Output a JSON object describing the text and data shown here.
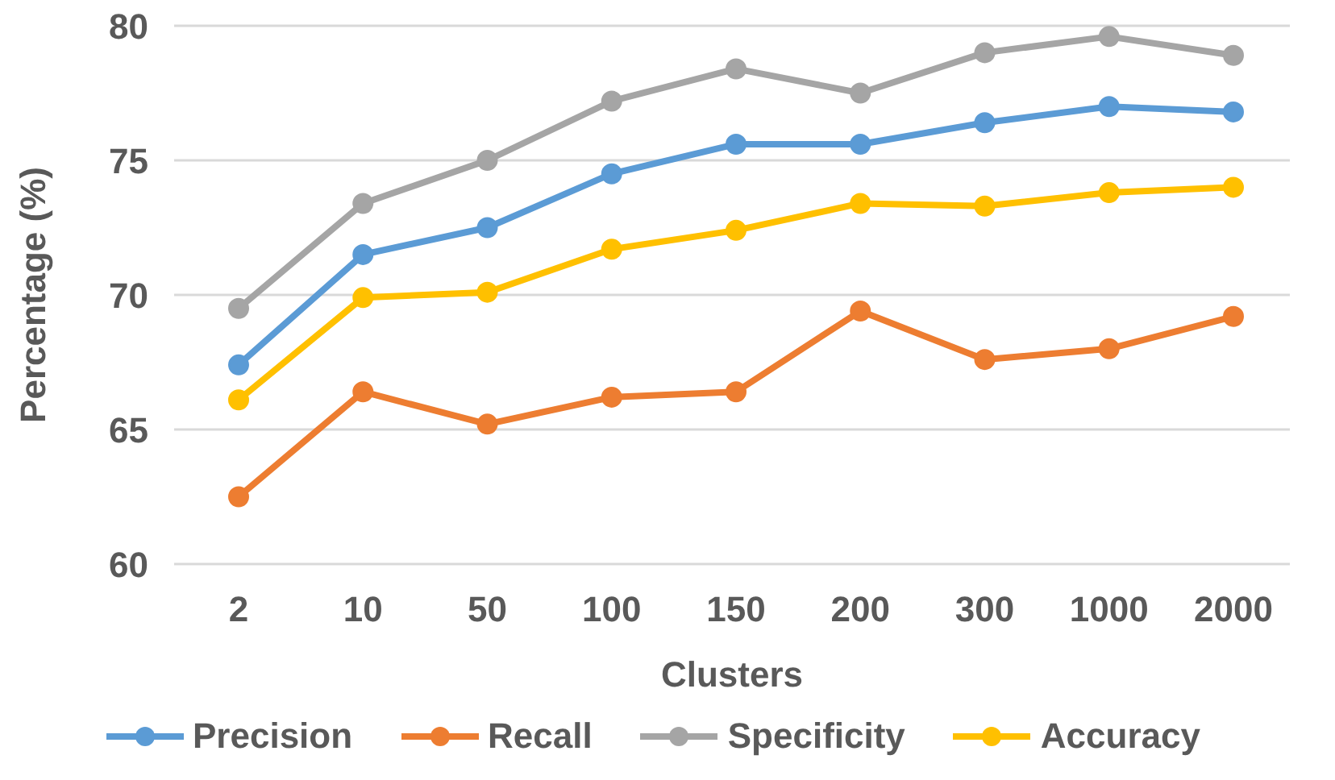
{
  "chart_data": {
    "type": "line",
    "xlabel": "Clusters",
    "ylabel": "Percentage (%)",
    "categories": [
      "2",
      "10",
      "50",
      "100",
      "150",
      "200",
      "300",
      "1000",
      "2000"
    ],
    "series": [
      {
        "name": "Precision",
        "color": "#5b9bd5",
        "values": [
          67.4,
          71.5,
          72.5,
          74.5,
          75.6,
          75.6,
          76.4,
          77.0,
          76.8
        ]
      },
      {
        "name": "Recall",
        "color": "#ed7d31",
        "values": [
          62.5,
          66.4,
          65.2,
          66.2,
          66.4,
          69.4,
          67.6,
          68.0,
          69.2
        ]
      },
      {
        "name": "Specificity",
        "color": "#a5a5a5",
        "values": [
          69.5,
          73.4,
          75.0,
          77.2,
          78.4,
          77.5,
          79.0,
          79.6,
          78.9
        ]
      },
      {
        "name": "Accuracy",
        "color": "#ffc000",
        "values": [
          66.1,
          69.9,
          70.1,
          71.7,
          72.4,
          73.4,
          73.3,
          73.8,
          74.0
        ]
      }
    ],
    "ylim": [
      60,
      80
    ],
    "yticks": [
      60,
      65,
      70,
      75,
      80
    ],
    "grid": "y",
    "legend": "bottom",
    "marker": "circle",
    "line_style": "solid"
  }
}
